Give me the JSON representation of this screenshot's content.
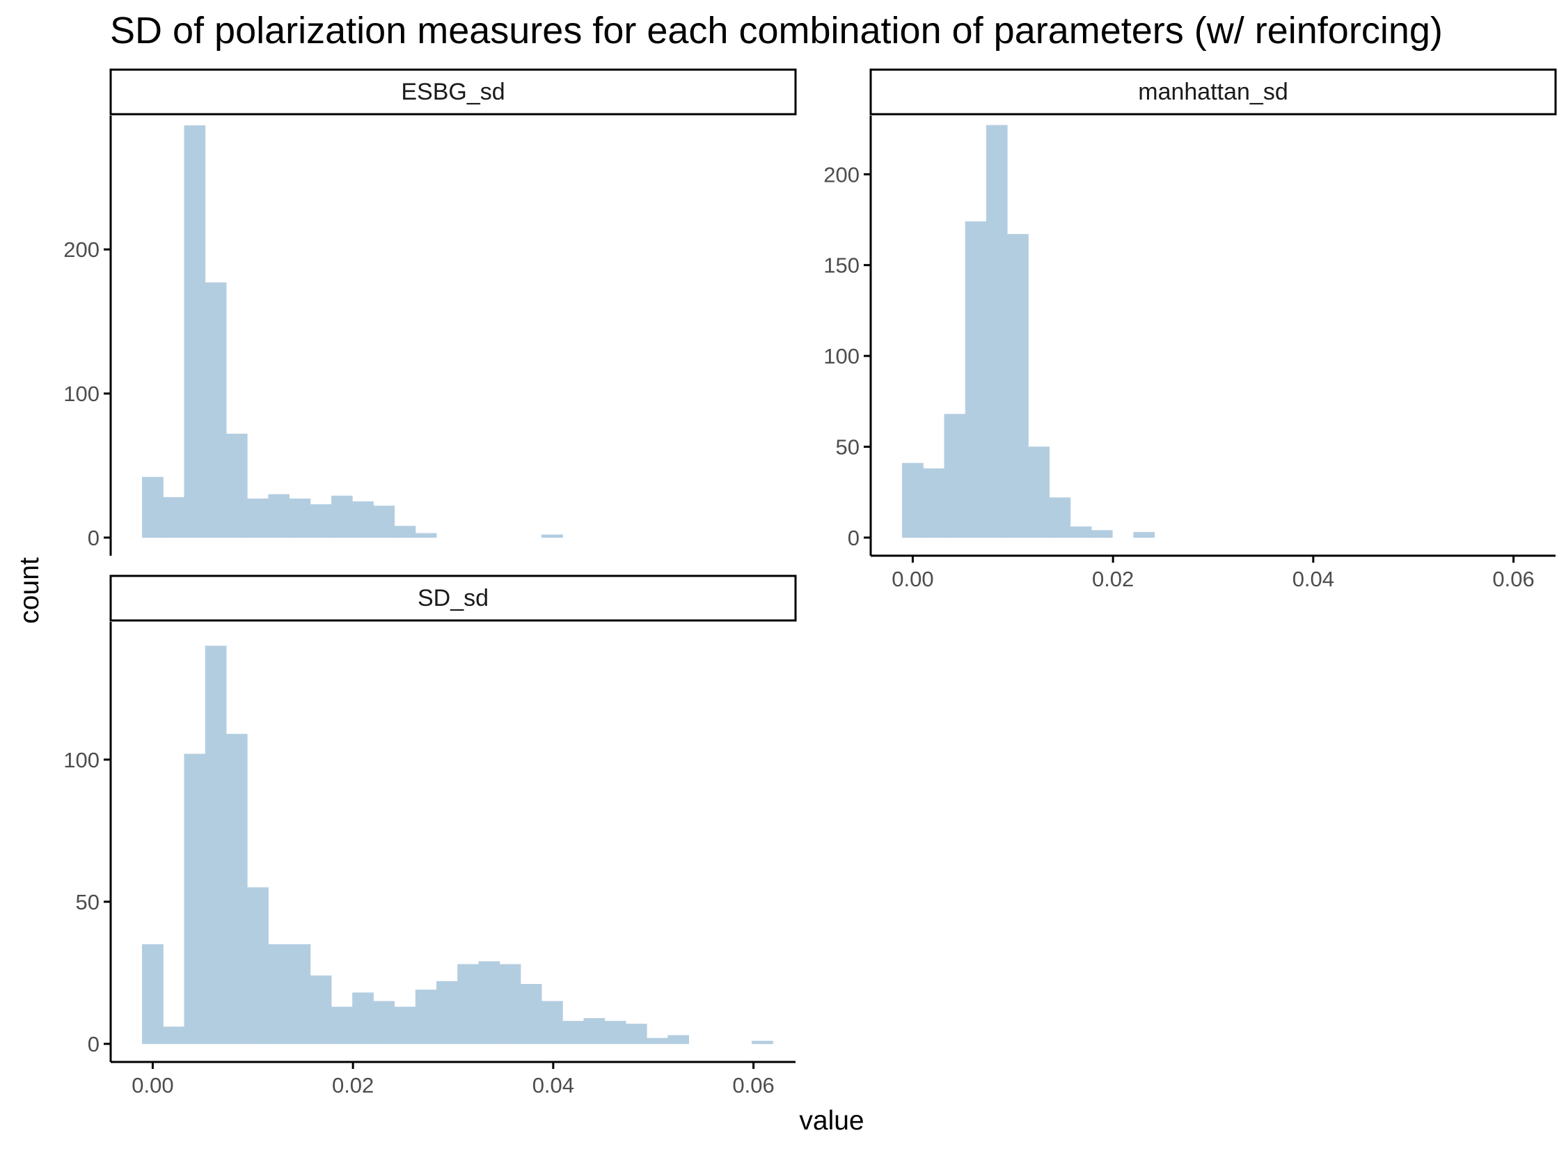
{
  "title": "SD of polarization measures for each combination of parameters (w/ reinforcing)",
  "xlabel": "value",
  "ylabel": "count",
  "colors": {
    "bar": "#b3cde0",
    "axis": "#000000",
    "strip_fill": "#ffffff",
    "tick_text": "#4d4d4d"
  },
  "chart_data": [
    {
      "type": "bar",
      "panel": "ESBG_sd",
      "bin_width": 0.0021,
      "x": [
        0.0,
        0.0021,
        0.0042,
        0.0063,
        0.0084,
        0.0105,
        0.0126,
        0.0147,
        0.0168,
        0.0189,
        0.021,
        0.0231,
        0.0252,
        0.0273,
        0.0399
      ],
      "values": [
        42,
        28,
        286,
        177,
        72,
        27,
        30,
        27,
        23,
        29,
        25,
        22,
        8,
        3,
        2
      ],
      "ylim": [
        0,
        290
      ],
      "yticks": [
        0,
        100,
        200
      ],
      "xticks": [
        0.0,
        0.02,
        0.04,
        0.06
      ],
      "xtick_labels": [
        "0.00",
        "0.02",
        "0.04",
        "0.06"
      ],
      "show_x_ticks": false
    },
    {
      "type": "bar",
      "panel": "manhattan_sd",
      "bin_width": 0.0021,
      "x": [
        0.0,
        0.0021,
        0.0042,
        0.0063,
        0.0084,
        0.0105,
        0.0126,
        0.0147,
        0.0168,
        0.0189,
        0.0231
      ],
      "values": [
        41,
        38,
        68,
        174,
        227,
        167,
        50,
        22,
        6,
        4,
        3
      ],
      "ylim": [
        0,
        230
      ],
      "yticks": [
        0,
        50,
        100,
        150,
        200
      ],
      "xticks": [
        0.0,
        0.02,
        0.04,
        0.06
      ],
      "xtick_labels": [
        "0.00",
        "0.02",
        "0.04",
        "0.06"
      ],
      "show_x_ticks": true
    },
    {
      "type": "bar",
      "panel": "SD_sd",
      "bin_width": 0.0021,
      "x": [
        0.0,
        0.0021,
        0.0042,
        0.0063,
        0.0084,
        0.0105,
        0.0126,
        0.0147,
        0.0168,
        0.0189,
        0.021,
        0.0231,
        0.0252,
        0.0273,
        0.0294,
        0.0315,
        0.0336,
        0.0357,
        0.0378,
        0.0399,
        0.042,
        0.0441,
        0.0462,
        0.0483,
        0.0504,
        0.0525,
        0.0609
      ],
      "values": [
        35,
        6,
        102,
        140,
        109,
        55,
        35,
        35,
        24,
        13,
        18,
        15,
        13,
        19,
        22,
        28,
        29,
        28,
        21,
        15,
        8,
        9,
        8,
        7,
        2,
        3,
        1
      ],
      "ylim": [
        0,
        147
      ],
      "yticks": [
        0,
        50,
        100
      ],
      "xticks": [
        0.0,
        0.02,
        0.04,
        0.06
      ],
      "xtick_labels": [
        "0.00",
        "0.02",
        "0.04",
        "0.06"
      ],
      "show_x_ticks": true
    }
  ]
}
